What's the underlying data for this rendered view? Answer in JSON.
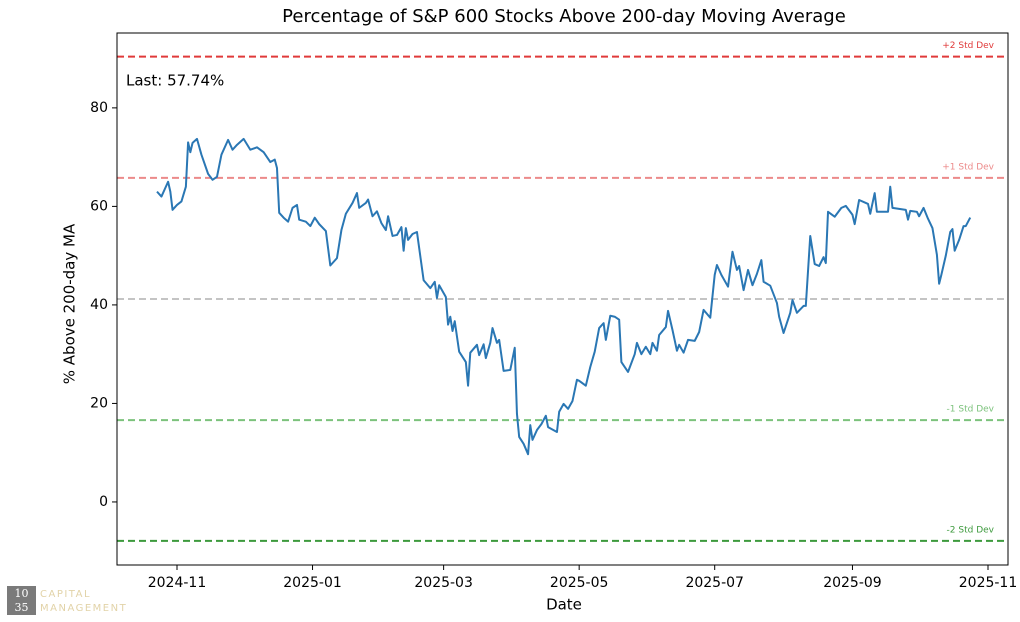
{
  "chart_data": {
    "type": "line",
    "title": "Percentage of S&P 600 Stocks Above 200-day Moving Average",
    "x_label": "Date",
    "y_label": "% Above 200-day MA",
    "annotation": "Last: 57.74%",
    "xlim": [
      "2024-10-05",
      "2025-11-10"
    ],
    "ylim": [
      -12.8,
      95.2
    ],
    "xticks": [
      {
        "value": "2024-11-01",
        "label": "2024-11"
      },
      {
        "value": "2025-01-01",
        "label": "2025-01"
      },
      {
        "value": "2025-03-01",
        "label": "2025-03"
      },
      {
        "value": "2025-05-01",
        "label": "2025-05"
      },
      {
        "value": "2025-07-01",
        "label": "2025-07"
      },
      {
        "value": "2025-09-01",
        "label": "2025-09"
      },
      {
        "value": "2025-11-01",
        "label": "2025-11"
      }
    ],
    "yticks": [
      0,
      20,
      40,
      60,
      80
    ],
    "grid": false,
    "reference_lines": [
      {
        "label": "+2 Std Dev",
        "value": 90.4,
        "color": "#e03a3a"
      },
      {
        "label": "+1 Std Dev",
        "value": 65.8,
        "color": "#ec8a8a"
      },
      {
        "value": 41.2,
        "color": "#c4c4c4"
      },
      {
        "label": "-1 Std Dev",
        "value": 16.6,
        "color": "#7cc27c"
      },
      {
        "label": "-2 Std Dev",
        "value": -7.9,
        "color": "#3d9a3d"
      }
    ],
    "x": [
      "2024-10-23",
      "2024-10-25",
      "2024-10-28",
      "2024-10-29",
      "2024-10-30",
      "2024-11-01",
      "2024-11-03",
      "2024-11-05",
      "2024-11-06",
      "2024-11-07",
      "2024-11-08",
      "2024-11-10",
      "2024-11-12",
      "2024-11-15",
      "2024-11-17",
      "2024-11-19",
      "2024-11-21",
      "2024-11-24",
      "2024-11-26",
      "2024-11-28",
      "2024-12-01",
      "2024-12-04",
      "2024-12-07",
      "2024-12-10",
      "2024-12-13",
      "2024-12-15",
      "2024-12-16",
      "2024-12-17",
      "2024-12-19",
      "2024-12-21",
      "2024-12-23",
      "2024-12-25",
      "2024-12-26",
      "2024-12-29",
      "2024-12-31",
      "2025-01-02",
      "2025-01-04",
      "2025-01-07",
      "2025-01-09",
      "2025-01-12",
      "2025-01-14",
      "2025-01-16",
      "2025-01-19",
      "2025-01-21",
      "2025-01-22",
      "2025-01-25",
      "2025-01-26",
      "2025-01-28",
      "2025-01-30",
      "2025-02-01",
      "2025-02-03",
      "2025-02-04",
      "2025-02-06",
      "2025-02-08",
      "2025-02-10",
      "2025-02-11",
      "2025-02-12",
      "2025-02-13",
      "2025-02-15",
      "2025-02-17",
      "2025-02-20",
      "2025-02-23",
      "2025-02-25",
      "2025-02-26",
      "2025-02-27",
      "2025-03-02",
      "2025-03-03",
      "2025-03-04",
      "2025-03-05",
      "2025-03-06",
      "2025-03-08",
      "2025-03-11",
      "2025-03-12",
      "2025-03-13",
      "2025-03-16",
      "2025-03-17",
      "2025-03-19",
      "2025-03-20",
      "2025-03-22",
      "2025-03-23",
      "2025-03-25",
      "2025-03-26",
      "2025-03-28",
      "2025-03-31",
      "2025-04-02",
      "2025-04-03",
      "2025-04-04",
      "2025-04-06",
      "2025-04-08",
      "2025-04-09",
      "2025-04-10",
      "2025-04-12",
      "2025-04-14",
      "2025-04-16",
      "2025-04-17",
      "2025-04-21",
      "2025-04-22",
      "2025-04-24",
      "2025-04-26",
      "2025-04-28",
      "2025-04-30",
      "2025-05-01",
      "2025-05-04",
      "2025-05-06",
      "2025-05-08",
      "2025-05-10",
      "2025-05-12",
      "2025-05-13",
      "2025-05-15",
      "2025-05-17",
      "2025-05-19",
      "2025-05-20",
      "2025-05-23",
      "2025-05-26",
      "2025-05-27",
      "2025-05-29",
      "2025-05-31",
      "2025-06-02",
      "2025-06-03",
      "2025-06-05",
      "2025-06-06",
      "2025-06-09",
      "2025-06-10",
      "2025-06-12",
      "2025-06-14",
      "2025-06-15",
      "2025-06-17",
      "2025-06-19",
      "2025-06-22",
      "2025-06-24",
      "2025-06-26",
      "2025-06-29",
      "2025-07-01",
      "2025-07-02",
      "2025-07-04",
      "2025-07-07",
      "2025-07-09",
      "2025-07-11",
      "2025-07-12",
      "2025-07-14",
      "2025-07-16",
      "2025-07-18",
      "2025-07-20",
      "2025-07-22",
      "2025-07-23",
      "2025-07-26",
      "2025-07-29",
      "2025-07-30",
      "2025-08-01",
      "2025-08-04",
      "2025-08-05",
      "2025-08-07",
      "2025-08-10",
      "2025-08-11",
      "2025-08-13",
      "2025-08-15",
      "2025-08-17",
      "2025-08-19",
      "2025-08-20",
      "2025-08-21",
      "2025-08-24",
      "2025-08-27",
      "2025-08-29",
      "2025-09-01",
      "2025-09-02",
      "2025-09-04",
      "2025-09-07",
      "2025-09-08",
      "2025-09-09",
      "2025-09-11",
      "2025-09-12",
      "2025-09-14",
      "2025-09-17",
      "2025-09-18",
      "2025-09-19",
      "2025-09-22",
      "2025-09-25",
      "2025-09-26",
      "2025-09-27",
      "2025-09-30",
      "2025-10-01",
      "2025-10-03",
      "2025-10-05",
      "2025-10-07",
      "2025-10-09",
      "2025-10-10",
      "2025-10-11",
      "2025-10-13",
      "2025-10-15",
      "2025-10-16",
      "2025-10-17",
      "2025-10-19",
      "2025-10-21",
      "2025-10-22",
      "2025-10-24"
    ],
    "series": [
      {
        "name": "% Above 200-day MA",
        "color": "#2a77b4",
        "values": [
          63,
          62,
          65,
          63,
          59.3,
          60.3,
          61,
          64,
          73,
          71,
          72.9,
          73.7,
          70.5,
          66.6,
          65.4,
          66,
          70.5,
          73.5,
          71.5,
          72.5,
          73.7,
          71.5,
          72,
          71,
          69,
          69.5,
          67.8,
          58.7,
          57.7,
          56.9,
          59.7,
          60.3,
          57.3,
          56.9,
          56,
          57.7,
          56.4,
          55,
          48,
          49.5,
          55.2,
          58.5,
          60.7,
          62.7,
          59.7,
          60.7,
          61.4,
          58,
          59,
          56.6,
          55.2,
          58,
          54,
          54.2,
          55.8,
          51,
          55.6,
          53.2,
          54.4,
          54.8,
          45,
          43.4,
          44.7,
          41.4,
          44,
          41.6,
          36,
          37.6,
          34.7,
          36.7,
          30.5,
          28.4,
          23.6,
          30.3,
          31.9,
          29.8,
          32,
          29.2,
          32.3,
          35.3,
          32.3,
          32.9,
          26.6,
          26.8,
          31.3,
          17.9,
          13.2,
          11.8,
          9.7,
          15.6,
          12.6,
          14.6,
          15.8,
          17.5,
          15.2,
          14.2,
          18.3,
          19.9,
          18.9,
          20.5,
          24.8,
          24.6,
          23.6,
          27.4,
          30.5,
          35.3,
          36.3,
          32.9,
          37.8,
          37.6,
          37,
          28.4,
          26.4,
          30,
          32.3,
          30,
          31.5,
          30,
          32.3,
          30.7,
          33.9,
          35.5,
          38.8,
          34.9,
          30.7,
          31.9,
          30.3,
          32.9,
          32.7,
          34.5,
          39,
          37.4,
          46.1,
          48.1,
          46.1,
          43.7,
          50.8,
          47.1,
          47.9,
          43,
          47.1,
          44,
          46.3,
          49.1,
          44.7,
          43.9,
          40.4,
          37.6,
          34.3,
          38.4,
          41,
          38.4,
          39.8,
          39.8,
          54,
          48.3,
          47.9,
          49.7,
          48.5,
          58.9,
          57.9,
          59.7,
          60.1,
          58.3,
          56.4,
          61.3,
          60.7,
          60.5,
          58.5,
          62.7,
          58.9,
          58.9,
          58.9,
          64,
          59.7,
          59.5,
          59.3,
          57.3,
          59.1,
          58.9,
          58,
          59.7,
          57.5,
          55.6,
          50.2,
          44.3,
          46.1,
          50,
          54.8,
          55.4,
          51,
          53.2,
          56,
          56,
          57.74
        ]
      }
    ]
  },
  "logo": {
    "number_top": "10",
    "number_bottom": "35",
    "line1": "CAPITAL",
    "line2": "MANAGEMENT"
  }
}
